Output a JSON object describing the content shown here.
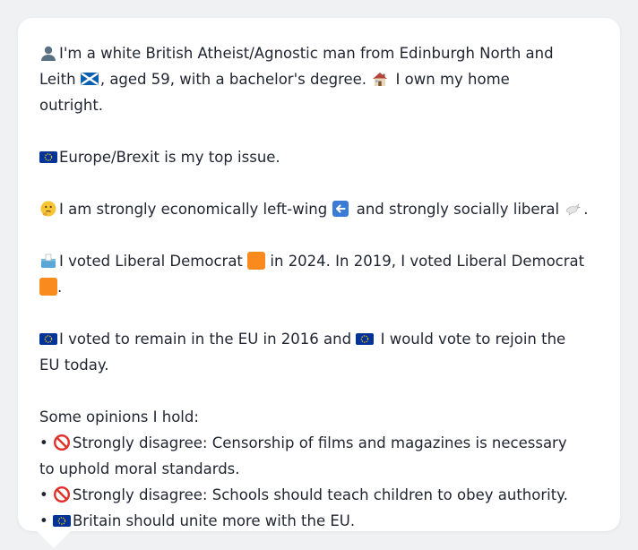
{
  "intro": {
    "icon": "person-silhouette-icon",
    "text_a": "I'm a white British Atheist/Agnostic man from Edinburgh North and Leith",
    "flag_icon": "scotland-flag-icon",
    "text_b": ", aged 59, with a bachelor's degree.",
    "home_icon": "house-icon",
    "text_c": " I own my home outright."
  },
  "issue": {
    "icon": "eu-flag-icon",
    "text": "Europe/Brexit is my top issue."
  },
  "politics": {
    "icon": "thinking-face-icon",
    "text_a": "I am strongly economically left-wing",
    "left_icon": "left-arrow-icon",
    "text_b": " and strongly socially liberal",
    "dove_icon": "dove-icon",
    "text_c": "."
  },
  "votes": {
    "icon": "ballot-box-icon",
    "text_a": "I voted Liberal Democrat",
    "party_icon": "orange-square-icon",
    "text_b": " in 2024. In 2019, I voted Liberal Democrat",
    "text_c": "."
  },
  "eu_ref": {
    "icon": "eu-flag-icon",
    "text_a": "I voted to remain in the EU in 2016 and",
    "text_b": " I would vote to rejoin the EU today."
  },
  "opinions": {
    "heading": "Some opinions I hold:",
    "items": [
      {
        "bullet": "•",
        "icon": "no-entry-icon",
        "text": "Strongly disagree: Censorship of films and magazines is necessary to uphold moral standards."
      },
      {
        "bullet": "•",
        "icon": "no-entry-icon",
        "text": "Strongly disagree: Schools should teach children to obey authority."
      },
      {
        "bullet": "•",
        "icon": "eu-flag-icon",
        "text": "Britain should unite more with the EU."
      }
    ]
  },
  "colors": {
    "page_bg": "#f0f1f3",
    "bubble_bg": "#ffffff",
    "text": "#1f2430",
    "lib_dem_orange": "#f98b1e",
    "eu_blue": "#003399"
  }
}
